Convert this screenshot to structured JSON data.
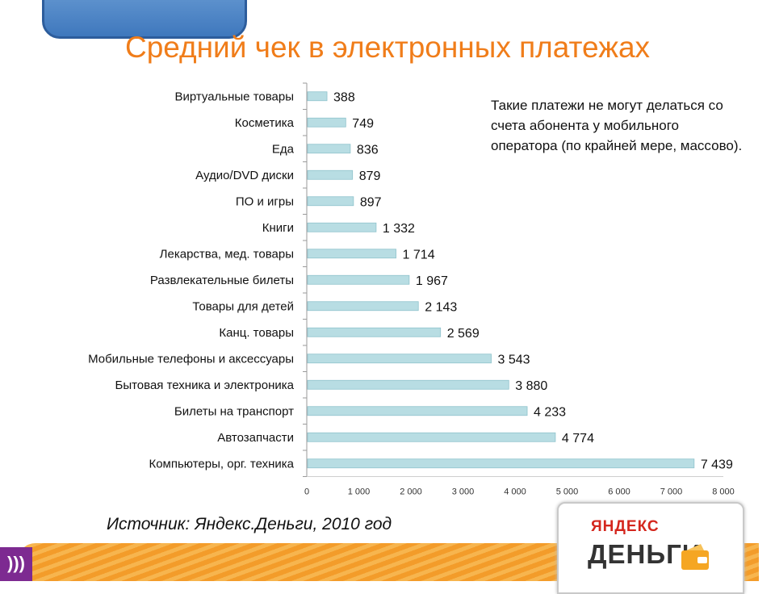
{
  "slide": {
    "title": "Средний чек в электронных платежах",
    "note": "Такие платежи не могут делаться со счета абонента у мобильного оператора (по крайней мере, массово).",
    "source": "Источник: Яндекс.Деньги, 2010 год"
  },
  "logo": {
    "top_text": "ЯНДЕКС",
    "bottom_text": "ДЕНЬГИ",
    "icon": "wallet-icon"
  },
  "badge_icon": "sound-waves-icon",
  "chart_data": {
    "type": "bar",
    "orientation": "horizontal",
    "categories": [
      "Виртуальные товары",
      "Косметика",
      "Еда",
      "Аудио/DVD диски",
      "ПО и игры",
      "Книги",
      "Лекарства, мед. товары",
      "Развлекательные билеты",
      "Товары для детей",
      "Канц. товары",
      "Мобильные телефоны и аксессуары",
      "Бытовая техника и электроника",
      "Билеты на транспорт",
      "Автозапчасти",
      "Компьютеры, орг. техника"
    ],
    "values": [
      388,
      749,
      836,
      879,
      897,
      1332,
      1714,
      1967,
      2143,
      2569,
      3543,
      3880,
      4233,
      4774,
      7439
    ],
    "value_labels": [
      "388",
      "749",
      "836",
      "879",
      "897",
      "1 332",
      "1 714",
      "1 967",
      "2 143",
      "2 569",
      "3 543",
      "3 880",
      "4 233",
      "4 774",
      "7 439"
    ],
    "xlim": [
      0,
      8000
    ],
    "x_ticks": [
      0,
      1000,
      2000,
      3000,
      4000,
      5000,
      6000,
      7000,
      8000
    ],
    "x_tick_labels": [
      "0",
      "1 000",
      "2 000",
      "3 000",
      "4 000",
      "5 000",
      "6 000",
      "7 000",
      "8 000"
    ],
    "bar_color": "#b8dde3",
    "bar_edge_color": "#8fc3cc",
    "grid": false
  },
  "colors": {
    "title": "#f07d1a",
    "accent_blue": "#3f78bd",
    "badge": "#7d2a91"
  }
}
